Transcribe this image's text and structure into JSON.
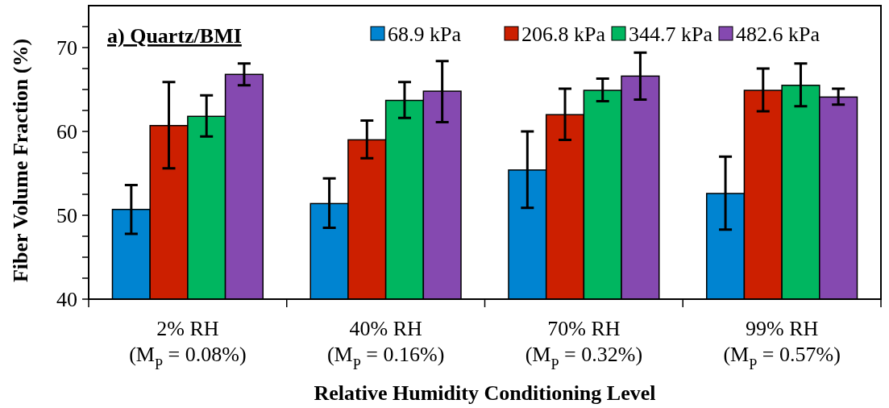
{
  "chart_data": {
    "type": "bar",
    "title": "a) Quartz/BMI",
    "xlabel": "Relative Humidity Conditioning Level",
    "ylabel": "Fiber Volume Fraction (%)",
    "categories": [
      "2% RH\n(M$_{P}$ = 0.08%)",
      "40% RH\n(M$_{P}$ = 0.16%)",
      "70% RH\n(M$_{P}$ = 0.32%)",
      "99% RH\n(M$_{P}$ = 0.57%)"
    ],
    "series": [
      {
        "name": "68.9 kPa",
        "color": "#0084d1",
        "values": [
          50.7,
          51.4,
          55.4,
          52.6
        ],
        "errors": [
          [
            47.8,
            53.6
          ],
          [
            48.5,
            54.4
          ],
          [
            50.9,
            60.0
          ],
          [
            48.3,
            57.0
          ]
        ]
      },
      {
        "name": "206.8 kPa",
        "color": "#cc1f00",
        "values": [
          60.7,
          59.0,
          62.0,
          64.9
        ],
        "errors": [
          [
            55.6,
            65.9
          ],
          [
            56.8,
            61.3
          ],
          [
            59.0,
            65.1
          ],
          [
            62.4,
            67.5
          ]
        ]
      },
      {
        "name": "344.7 kPa",
        "color": "#00b660",
        "values": [
          61.8,
          63.7,
          64.9,
          65.5
        ],
        "errors": [
          [
            59.4,
            64.3
          ],
          [
            61.6,
            65.9
          ],
          [
            63.6,
            66.3
          ],
          [
            63.0,
            68.1
          ]
        ]
      },
      {
        "name": "482.6 kPa",
        "color": "#8549b0",
        "values": [
          66.8,
          64.8,
          66.6,
          64.1
        ],
        "errors": [
          [
            65.5,
            68.1
          ],
          [
            61.1,
            68.4
          ],
          [
            63.8,
            69.4
          ],
          [
            63.2,
            65.1
          ]
        ]
      }
    ],
    "ylim": [
      40,
      75
    ],
    "yticks": [
      40,
      {
        "value": 42.5,
        "label": null
      },
      {
        "value": 45,
        "label": null
      },
      {
        "value": 47.5,
        "label": null
      },
      50,
      {
        "value": 52.5,
        "label": null
      },
      {
        "value": 55,
        "label": null
      },
      {
        "value": 57.5,
        "label": null
      },
      60,
      {
        "value": 62.5,
        "label": null
      },
      {
        "value": 65,
        "label": null
      },
      {
        "value": 67.5,
        "label": null
      },
      70,
      {
        "value": 72.5,
        "label": null
      }
    ],
    "grid": false,
    "legend": "top right"
  }
}
